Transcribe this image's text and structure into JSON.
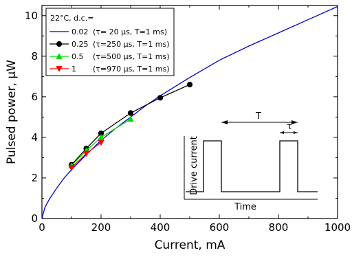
{
  "chart_data": {
    "type": "line",
    "xlabel": "Current, mA",
    "ylabel": "Pulsed power, μW",
    "xlim": [
      0,
      1000
    ],
    "ylim": [
      0,
      10.5
    ],
    "xticks": [
      "0",
      "200",
      "400",
      "600",
      "800",
      "1000"
    ],
    "yticks": [
      "0",
      "2",
      "4",
      "6",
      "8",
      "10"
    ],
    "legend_title": "22°C, d.c.=",
    "legend_position": "top-left",
    "series": [
      {
        "name": "0.02",
        "params": "(τ= 20 μs, T=1 ms)",
        "color": "#0000cc",
        "marker": "none",
        "x": [
          0,
          10,
          25,
          50,
          75,
          100,
          150,
          200,
          250,
          300,
          350,
          400,
          450,
          500,
          600,
          700,
          800,
          900,
          1000
        ],
        "y": [
          0,
          0.55,
          0.95,
          1.5,
          2.0,
          2.4,
          3.15,
          3.85,
          4.45,
          5.0,
          5.55,
          6.05,
          6.5,
          6.95,
          7.8,
          8.5,
          9.15,
          9.8,
          10.45
        ]
      },
      {
        "name": "0.25",
        "params": "(τ=250 μs, T=1 ms)",
        "color": "#000000",
        "marker": "circle",
        "x": [
          100,
          150,
          200,
          300,
          400,
          500
        ],
        "y": [
          2.65,
          3.45,
          4.2,
          5.2,
          5.95,
          6.6
        ]
      },
      {
        "name": "0.5",
        "params": "(τ=500 μs, T=1 ms)",
        "color": "#00dd00",
        "marker": "triangle-up",
        "x": [
          100,
          150,
          200,
          300
        ],
        "y": [
          2.6,
          3.35,
          4.0,
          4.9
        ]
      },
      {
        "name": "1",
        "params": "(τ=970 μs, T=1 ms)",
        "color": "#ff0000",
        "marker": "triangle-down",
        "x": [
          100,
          150,
          200
        ],
        "y": [
          2.5,
          3.2,
          3.75
        ]
      }
    ],
    "inset": {
      "ylabel": "Drive current",
      "xlabel": "Time",
      "period_label": "T",
      "pulse_label": "τ"
    }
  }
}
